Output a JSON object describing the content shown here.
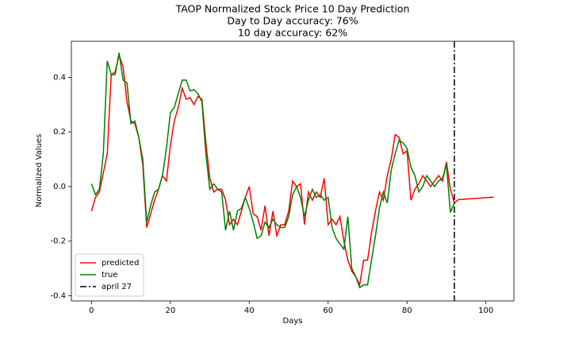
{
  "chart_data": {
    "type": "line",
    "title": "TAOP Normalized Stock Price 10 Day Prediction",
    "subtitle": [
      "Day to Day accuracy: 76%",
      "10 day accuracy: 62%"
    ],
    "xlabel": "Days",
    "ylabel": "Normalized Values",
    "x": [
      0,
      1,
      2,
      3,
      4,
      5,
      6,
      7,
      8,
      9,
      10,
      11,
      12,
      13,
      14,
      15,
      16,
      17,
      18,
      19,
      20,
      21,
      22,
      23,
      24,
      25,
      26,
      27,
      28,
      29,
      30,
      31,
      32,
      33,
      34,
      35,
      36,
      37,
      38,
      39,
      40,
      41,
      42,
      43,
      44,
      45,
      46,
      47,
      48,
      49,
      50,
      51,
      52,
      53,
      54,
      55,
      56,
      57,
      58,
      59,
      60,
      61,
      62,
      63,
      64,
      65,
      66,
      67,
      68,
      69,
      70,
      71,
      72,
      73,
      74,
      75,
      76,
      77,
      78,
      79,
      80,
      81,
      82,
      83,
      84,
      85,
      86,
      87,
      88,
      89,
      90,
      91,
      92,
      93,
      94,
      95,
      96,
      97,
      98,
      99,
      100,
      101,
      102
    ],
    "series": [
      {
        "name": "predicted",
        "color": "#ff0000",
        "values": [
          -0.09,
          -0.04,
          -0.02,
          0.05,
          0.12,
          0.41,
          0.42,
          0.48,
          0.44,
          0.31,
          0.24,
          0.23,
          0.18,
          0.08,
          -0.15,
          -0.1,
          -0.05,
          -0.01,
          0.04,
          0.02,
          0.15,
          0.24,
          0.29,
          0.36,
          0.32,
          0.325,
          0.3,
          0.33,
          0.32,
          0.16,
          0.03,
          -0.02,
          -0.01,
          -0.01,
          -0.05,
          -0.14,
          -0.12,
          -0.14,
          -0.09,
          -0.04,
          0.0,
          -0.1,
          -0.11,
          -0.16,
          -0.07,
          -0.18,
          -0.09,
          -0.18,
          -0.14,
          -0.14,
          -0.09,
          0.02,
          0.0,
          0.01,
          -0.14,
          -0.02,
          -0.05,
          -0.02,
          -0.04,
          0.03,
          -0.14,
          -0.12,
          -0.14,
          -0.11,
          -0.2,
          -0.27,
          -0.31,
          -0.33,
          -0.36,
          -0.27,
          -0.27,
          -0.17,
          -0.09,
          -0.02,
          -0.05,
          0.04,
          0.1,
          0.19,
          0.18,
          0.12,
          0.13,
          -0.05,
          -0.01,
          0.01,
          0.04,
          0.02,
          0.0,
          0.02,
          0.04,
          0.02,
          0.09,
          -0.01,
          -0.06,
          -0.048,
          -0.047,
          -0.046,
          -0.045,
          -0.044,
          -0.043,
          -0.042,
          -0.041,
          -0.04,
          -0.039
        ]
      },
      {
        "name": "true",
        "color": "#008000",
        "values": [
          0.01,
          -0.03,
          -0.01,
          0.12,
          0.46,
          0.41,
          0.41,
          0.49,
          0.39,
          0.38,
          0.23,
          0.24,
          0.18,
          0.1,
          -0.13,
          -0.07,
          -0.02,
          -0.01,
          0.04,
          0.14,
          0.27,
          0.29,
          0.34,
          0.39,
          0.39,
          0.35,
          0.355,
          0.34,
          0.31,
          0.12,
          -0.01,
          0.01,
          -0.01,
          -0.02,
          -0.16,
          -0.09,
          -0.16,
          -0.09,
          -0.08,
          -0.04,
          -0.08,
          -0.13,
          -0.19,
          -0.18,
          -0.13,
          -0.15,
          -0.12,
          -0.14,
          -0.15,
          -0.15,
          -0.11,
          -0.03,
          0.0,
          -0.04,
          -0.11,
          -0.05,
          -0.01,
          -0.04,
          -0.03,
          -0.05,
          -0.04,
          -0.15,
          -0.19,
          -0.21,
          -0.23,
          -0.11,
          -0.3,
          -0.33,
          -0.37,
          -0.36,
          -0.36,
          -0.27,
          -0.18,
          -0.08,
          -0.02,
          -0.06,
          0.06,
          0.12,
          0.17,
          0.16,
          0.14,
          0.07,
          0.04,
          -0.02,
          0.0,
          0.04,
          0.02,
          0.0,
          0.02,
          0.03,
          0.08,
          -0.095,
          -0.06,
          null,
          null,
          null,
          null,
          null,
          null,
          null,
          null,
          null,
          null
        ]
      }
    ],
    "vlines": [
      {
        "name": "april 27",
        "x": 92,
        "color": "#000000"
      }
    ],
    "xlim": [
      -5.1,
      107.1
    ],
    "ylim": [
      -0.419,
      0.532
    ],
    "xticks": [
      0,
      20,
      40,
      60,
      80,
      100
    ],
    "yticks": [
      -0.4,
      -0.2,
      {
        "value": 0,
        "label": "0.0"
      },
      0.2,
      0.4
    ],
    "legend": "lower left"
  }
}
